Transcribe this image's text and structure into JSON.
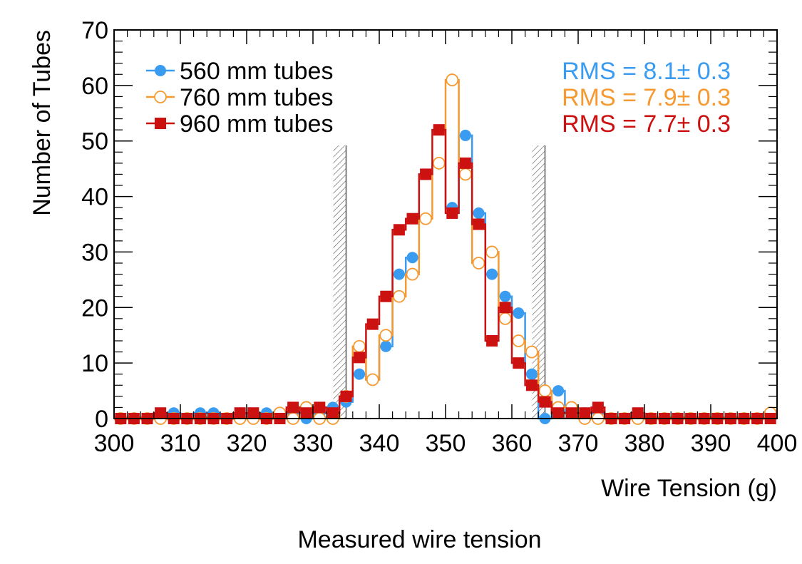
{
  "chart_data": {
    "type": "histogram",
    "xlabel": "Wire Tension (g)",
    "ylabel": "Number of Tubes",
    "xlim": [
      300,
      400
    ],
    "ylim": [
      0,
      70
    ],
    "x_ticks": [
      300,
      310,
      320,
      330,
      340,
      350,
      360,
      370,
      380,
      390,
      400
    ],
    "y_ticks": [
      0,
      10,
      20,
      30,
      40,
      50,
      60,
      70
    ],
    "bin_width": 2,
    "bin_centers": [
      301,
      303,
      305,
      307,
      309,
      311,
      313,
      315,
      317,
      319,
      321,
      323,
      325,
      327,
      329,
      331,
      333,
      335,
      337,
      339,
      341,
      343,
      345,
      347,
      349,
      351,
      353,
      355,
      357,
      359,
      361,
      363,
      365,
      367,
      369,
      371,
      373,
      375,
      377,
      379,
      381,
      383,
      385,
      387,
      389,
      391,
      393,
      395,
      397,
      399
    ],
    "series": [
      {
        "name": "560 mm tubes",
        "color": "#3a9cf0",
        "marker": "filled-circle",
        "values": [
          0,
          0,
          0,
          0,
          1,
          0,
          1,
          1,
          0,
          1,
          0,
          1,
          0,
          1,
          0,
          1,
          2,
          3,
          8,
          7,
          13,
          26,
          29,
          44,
          46,
          38,
          51,
          37,
          26,
          22,
          19,
          8,
          0,
          5,
          1,
          1,
          1,
          0,
          0,
          0,
          0,
          0,
          0,
          0,
          0,
          0,
          0,
          0,
          0,
          0
        ]
      },
      {
        "name": "760 mm tubes",
        "color": "#f59a32",
        "marker": "open-circle",
        "values": [
          0,
          0,
          0,
          0,
          0,
          0,
          0,
          0,
          0,
          0,
          0,
          0,
          1,
          0,
          2,
          0,
          0,
          4,
          13,
          7,
          15,
          22,
          26,
          36,
          46,
          61,
          44,
          28,
          30,
          18,
          14,
          12,
          5,
          2,
          2,
          0,
          0,
          0,
          0,
          0,
          0,
          0,
          0,
          0,
          0,
          0,
          0,
          0,
          0,
          1
        ]
      },
      {
        "name": "960 mm tubes",
        "color": "#cc1111",
        "marker": "filled-square",
        "values": [
          0,
          0,
          0,
          1,
          0,
          0,
          0,
          0,
          0,
          1,
          1,
          0,
          0,
          2,
          1,
          2,
          1,
          4,
          11,
          17,
          22,
          34,
          36,
          44,
          52,
          37,
          46,
          35,
          14,
          20,
          10,
          6,
          3,
          1,
          1,
          1,
          2,
          0,
          0,
          1,
          0,
          0,
          0,
          0,
          0,
          0,
          0,
          0,
          0,
          0
        ]
      }
    ],
    "rms_labels": [
      {
        "text": "RMS = 8.1± 0.3",
        "color": "#3a9cf0"
      },
      {
        "text": "RMS = 7.9± 0.3",
        "color": "#f59a32"
      },
      {
        "text": "RMS = 7.7± 0.3",
        "color": "#cc1111"
      }
    ],
    "limit_lines": [
      335,
      365
    ],
    "legend_position": "top-left",
    "grid": false
  },
  "caption": "Measured wire tension"
}
